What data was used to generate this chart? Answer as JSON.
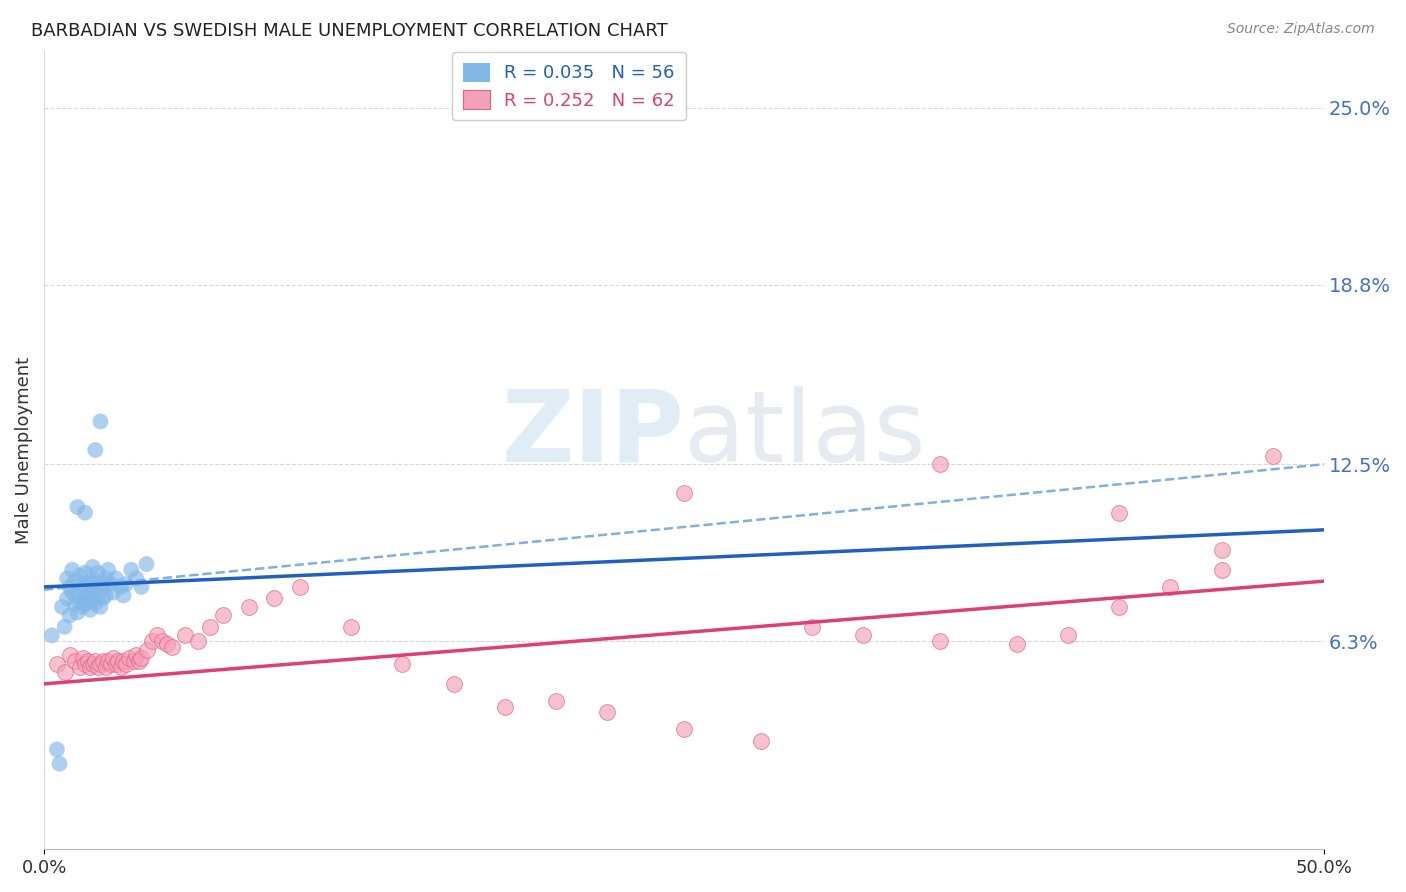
{
  "title": "BARBADIAN VS SWEDISH MALE UNEMPLOYMENT CORRELATION CHART",
  "source": "Source: ZipAtlas.com",
  "ylabel": "Male Unemployment",
  "right_yticks": [
    "25.0%",
    "18.8%",
    "12.5%",
    "6.3%"
  ],
  "right_ytick_vals": [
    0.25,
    0.188,
    0.125,
    0.063
  ],
  "xlim": [
    0.0,
    0.5
  ],
  "ylim": [
    -0.01,
    0.27
  ],
  "legend_blue_label": "R = 0.035   N = 56",
  "legend_pink_label": "R = 0.252   N = 62",
  "blue_scatter_color": "#82b8e8",
  "pink_scatter_color": "#f4a0b8",
  "pink_scatter_edge": "#e06080",
  "blue_line_color": "#2060c0",
  "pink_line_color": "#e04070",
  "blue_dash_color": "#80b0e0",
  "grid_color": "#d8d8d8",
  "title_color": "#222222",
  "source_color": "#888888",
  "right_tick_color": "#4472c4",
  "watermark_color": "#c8ddf0",
  "background": "#ffffff",
  "blue_line_intercept": 0.082,
  "blue_line_slope": 0.04,
  "pink_line_intercept": 0.048,
  "pink_line_slope": 0.072,
  "blue_dash_intercept": 0.081,
  "blue_dash_slope": 0.088,
  "barbadian_x": [
    0.003,
    0.005,
    0.006,
    0.007,
    0.008,
    0.009,
    0.009,
    0.01,
    0.01,
    0.011,
    0.011,
    0.012,
    0.012,
    0.013,
    0.013,
    0.014,
    0.014,
    0.015,
    0.015,
    0.016,
    0.016,
    0.016,
    0.017,
    0.017,
    0.018,
    0.018,
    0.018,
    0.019,
    0.019,
    0.019,
    0.02,
    0.02,
    0.02,
    0.021,
    0.021,
    0.022,
    0.022,
    0.023,
    0.023,
    0.024,
    0.024,
    0.025,
    0.026,
    0.027,
    0.028,
    0.03,
    0.031,
    0.032,
    0.034,
    0.036,
    0.038,
    0.04,
    0.013,
    0.016,
    0.02,
    0.022
  ],
  "barbadian_y": [
    0.065,
    0.025,
    0.02,
    0.075,
    0.068,
    0.085,
    0.078,
    0.082,
    0.072,
    0.08,
    0.088,
    0.076,
    0.084,
    0.073,
    0.079,
    0.077,
    0.086,
    0.083,
    0.075,
    0.08,
    0.087,
    0.076,
    0.082,
    0.078,
    0.084,
    0.079,
    0.074,
    0.083,
    0.077,
    0.089,
    0.081,
    0.076,
    0.084,
    0.079,
    0.087,
    0.082,
    0.075,
    0.078,
    0.083,
    0.079,
    0.085,
    0.088,
    0.083,
    0.08,
    0.085,
    0.082,
    0.079,
    0.083,
    0.088,
    0.085,
    0.082,
    0.09,
    0.11,
    0.108,
    0.13,
    0.14
  ],
  "swedish_x": [
    0.005,
    0.008,
    0.01,
    0.012,
    0.014,
    0.015,
    0.016,
    0.017,
    0.018,
    0.019,
    0.02,
    0.021,
    0.022,
    0.023,
    0.024,
    0.025,
    0.026,
    0.027,
    0.028,
    0.029,
    0.03,
    0.031,
    0.032,
    0.033,
    0.035,
    0.036,
    0.037,
    0.038,
    0.04,
    0.042,
    0.044,
    0.046,
    0.048,
    0.05,
    0.055,
    0.06,
    0.065,
    0.07,
    0.08,
    0.09,
    0.1,
    0.12,
    0.14,
    0.16,
    0.18,
    0.2,
    0.22,
    0.25,
    0.28,
    0.3,
    0.32,
    0.35,
    0.38,
    0.4,
    0.42,
    0.44,
    0.46,
    0.48,
    0.25,
    0.35,
    0.42,
    0.46
  ],
  "swedish_y": [
    0.055,
    0.052,
    0.058,
    0.056,
    0.054,
    0.057,
    0.055,
    0.056,
    0.054,
    0.055,
    0.056,
    0.054,
    0.055,
    0.056,
    0.054,
    0.056,
    0.055,
    0.057,
    0.055,
    0.056,
    0.054,
    0.056,
    0.055,
    0.057,
    0.056,
    0.058,
    0.056,
    0.057,
    0.06,
    0.063,
    0.065,
    0.063,
    0.062,
    0.061,
    0.065,
    0.063,
    0.068,
    0.072,
    0.075,
    0.078,
    0.082,
    0.068,
    0.055,
    0.048,
    0.04,
    0.042,
    0.038,
    0.032,
    0.028,
    0.068,
    0.065,
    0.063,
    0.062,
    0.065,
    0.075,
    0.082,
    0.088,
    0.128,
    0.115,
    0.125,
    0.108,
    0.095
  ]
}
